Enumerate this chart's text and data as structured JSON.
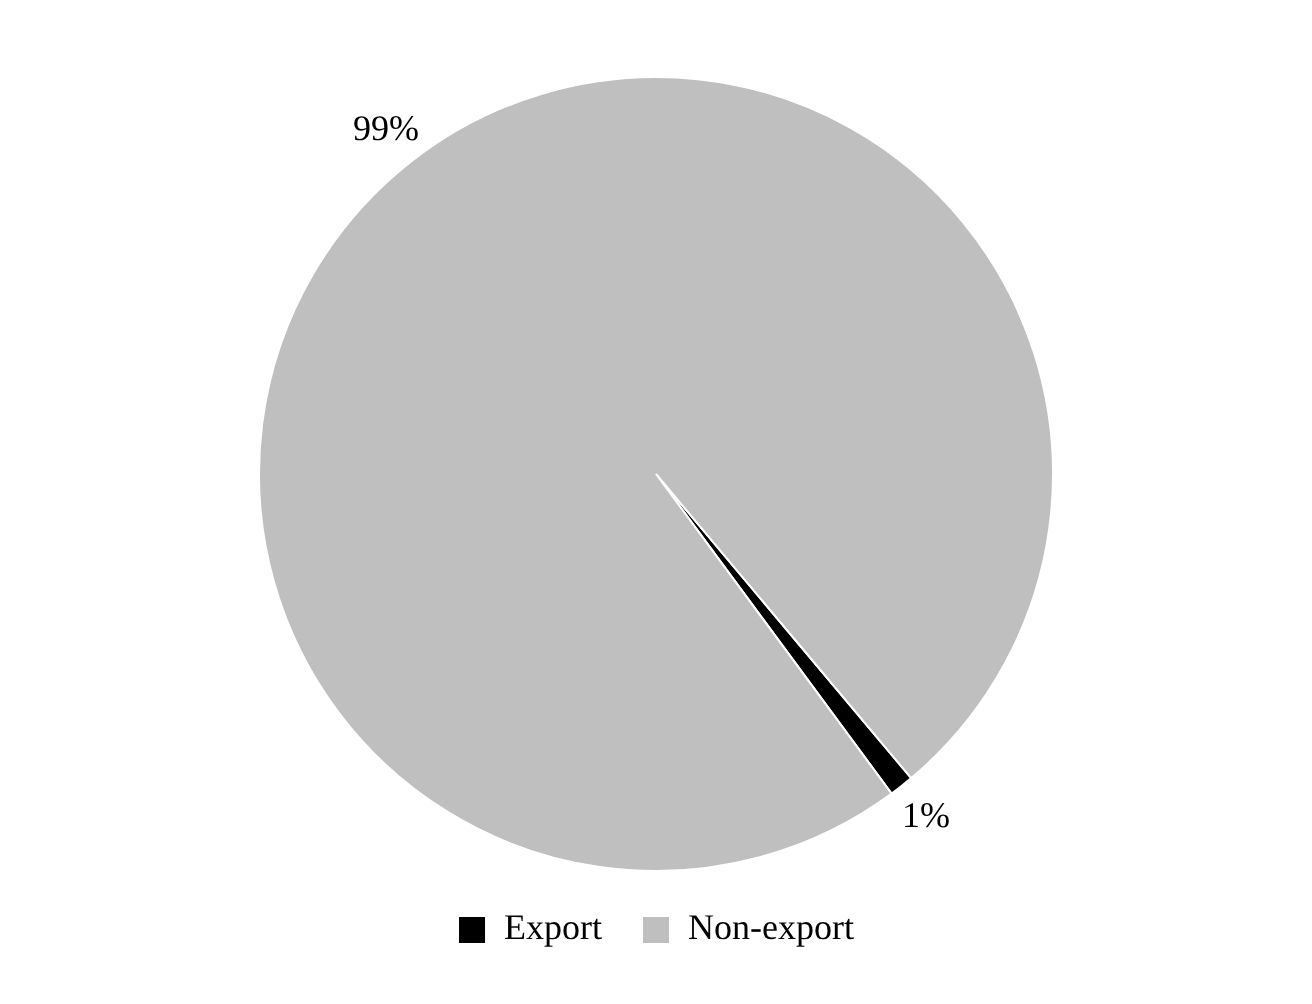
{
  "chart_data": {
    "type": "pie",
    "categories": [
      "Export",
      "Non-export"
    ],
    "values": [
      1,
      99
    ],
    "colors": [
      "#000000",
      "#bfbfbf"
    ],
    "value_labels": [
      "1%",
      "99%"
    ],
    "legend": "bottom"
  }
}
